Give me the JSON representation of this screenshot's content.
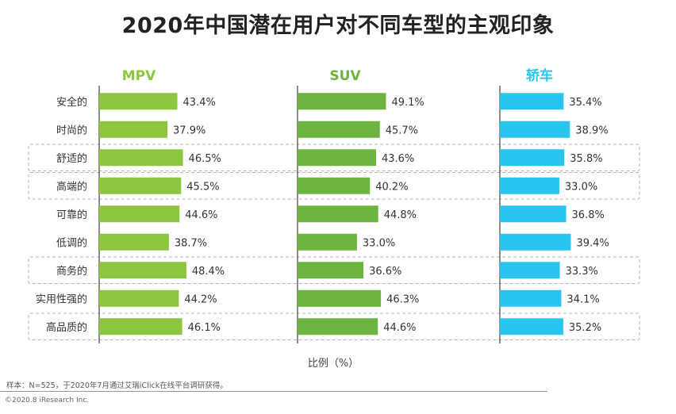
{
  "title": "2020年中国潜在用户对不同车型的主观印象",
  "chart_data": {
    "type": "bar",
    "orientation": "horizontal",
    "categories": [
      "安全的",
      "时尚的",
      "舒适的",
      "高端的",
      "可靠的",
      "低调的",
      "商务的",
      "实用性强的",
      "高品质的"
    ],
    "series": [
      {
        "name": "MPV",
        "color": "#8cc63f",
        "values": [
          43.4,
          37.9,
          46.5,
          45.5,
          44.6,
          38.7,
          48.4,
          44.2,
          46.1
        ]
      },
      {
        "name": "SUV",
        "color": "#6cb33f",
        "values": [
          49.1,
          45.7,
          43.6,
          40.2,
          44.8,
          33.0,
          36.6,
          46.3,
          44.6
        ]
      },
      {
        "name": "轿车",
        "color": "#29c5ee",
        "values": [
          35.4,
          38.9,
          35.8,
          33.0,
          36.8,
          39.4,
          33.3,
          34.1,
          35.2
        ]
      }
    ],
    "value_labels": [
      [
        "43.4%",
        "37.9%",
        "46.5%",
        "45.5%",
        "44.6%",
        "38.7%",
        "48.4%",
        "44.2%",
        "46.1%"
      ],
      [
        "49.1%",
        "45.7%",
        "43.6%",
        "40.2%",
        "44.8%",
        "33.0%",
        "36.6%",
        "46.3%",
        "44.6%"
      ],
      [
        "35.4%",
        "38.9%",
        "35.8%",
        "33.0%",
        "36.8%",
        "39.4%",
        "33.3%",
        "34.1%",
        "35.2%"
      ]
    ],
    "highlighted_rows": [
      2,
      3,
      6,
      8
    ],
    "xlabel": "比例（%）"
  },
  "footer": {
    "note": "样本：N=525，于2020年7月通过艾瑞iClick在线平台调研获得。",
    "copyright": "©2020.8 iResearch Inc."
  }
}
